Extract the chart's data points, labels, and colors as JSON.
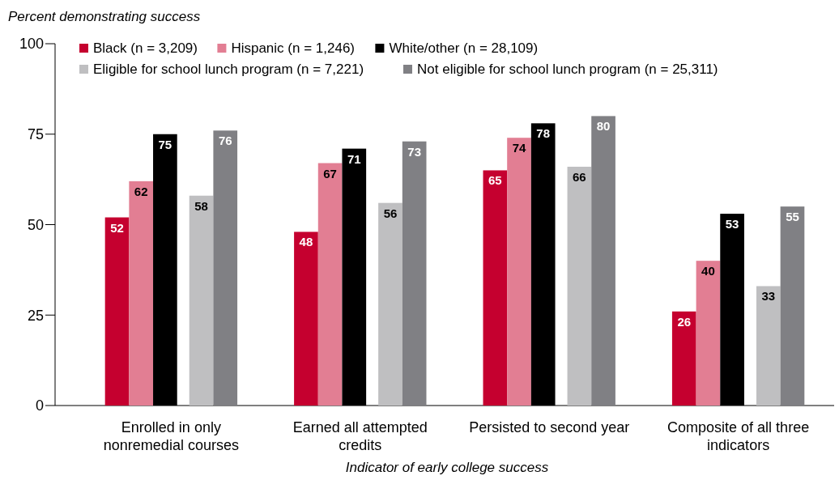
{
  "chart_data": {
    "type": "bar",
    "ylabel": "Percent demonstrating success",
    "xlabel": "Indicator of early college success",
    "categories": [
      "Enrolled in only nonremedial courses",
      "Earned all attempted credits",
      "Persisted to second year",
      "Composite of all three indicators"
    ],
    "series": [
      {
        "name": "Black (n = 3,209)",
        "color": "#c5002f",
        "values": [
          52,
          48,
          65,
          26
        ]
      },
      {
        "name": "Hispanic (n = 1,246)",
        "color": "#e27e93",
        "values": [
          62,
          67,
          74,
          40
        ]
      },
      {
        "name": "White/other (n = 28,109)",
        "color": "#000000",
        "values": [
          75,
          71,
          78,
          53
        ]
      },
      {
        "name": "Eligible for school lunch program (n = 7,221)",
        "color": "#bfbfc1",
        "values": [
          58,
          56,
          66,
          33
        ]
      },
      {
        "name": "Not eligible for school lunch program (n = 25,311)",
        "color": "#808084",
        "values": [
          76,
          73,
          80,
          55
        ]
      }
    ],
    "ylim": [
      0,
      100
    ],
    "yticks": [
      0,
      25,
      50,
      75,
      100
    ],
    "grid": false,
    "legend": "top left",
    "data_labels": true
  }
}
